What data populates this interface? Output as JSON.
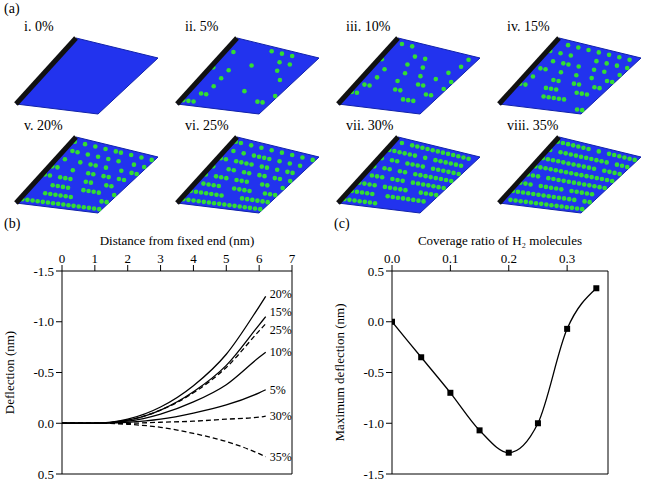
{
  "images": {
    "label": "(a)",
    "captions": [
      "i. 0%",
      "ii. 5%",
      "iii. 10%",
      "iv. 15%",
      "v. 20%",
      "vi. 25%",
      "vii. 30%",
      "viii. 35%"
    ]
  },
  "chart_data": [
    {
      "type": "line",
      "title": "(b)",
      "x_label": "Distance from fixed end (nm)",
      "y_label": "Deflection (nm)",
      "x": [
        0,
        1,
        2,
        3,
        4,
        5,
        6,
        6.2
      ],
      "series": [
        {
          "name": "20%",
          "color": "#000000",
          "line_style": "solid",
          "values": [
            0,
            0,
            -0.04,
            -0.16,
            -0.37,
            -0.68,
            -1.15,
            -1.25
          ]
        },
        {
          "name": "15%",
          "color": "#000000",
          "line_style": "solid",
          "values": [
            0,
            0,
            -0.03,
            -0.13,
            -0.31,
            -0.57,
            -0.97,
            -1.05
          ]
        },
        {
          "name": "25%",
          "color": "#000000",
          "line_style": "dashed",
          "values": [
            0,
            0,
            -0.03,
            -0.13,
            -0.3,
            -0.55,
            -0.91,
            -0.98
          ]
        },
        {
          "name": "10%",
          "color": "#000000",
          "line_style": "solid",
          "values": [
            0,
            0,
            -0.02,
            -0.09,
            -0.21,
            -0.38,
            -0.65,
            -0.7
          ]
        },
        {
          "name": "5%",
          "color": "#000000",
          "line_style": "solid",
          "values": [
            0,
            0,
            -0.01,
            -0.04,
            -0.1,
            -0.18,
            -0.3,
            -0.33
          ]
        },
        {
          "name": "30%",
          "color": "#000000",
          "line_style": "dashed",
          "values": [
            0,
            0,
            0,
            -0.01,
            -0.02,
            -0.04,
            -0.06,
            -0.07
          ]
        },
        {
          "name": "35%",
          "color": "#000000",
          "line_style": "dashed",
          "values": [
            0,
            0,
            0.01,
            0.04,
            0.1,
            0.18,
            0.3,
            0.33
          ]
        }
      ],
      "xlim": [
        0,
        7
      ],
      "xticks": [
        0,
        1,
        2,
        3,
        4,
        5,
        6,
        7
      ],
      "ylim": [
        0.5,
        -1.5
      ],
      "yticks": [
        -1.5,
        {
          "value": -1,
          "label": "-1.0"
        },
        -0.5,
        {
          "value": 0,
          "label": "0.0"
        },
        0.5
      ]
    },
    {
      "type": "line",
      "title": "(c)",
      "x_label": "Coverage ratio of H₂ molecules",
      "y_label": "Maximum deflection (nm)",
      "x": [
        0,
        0.05,
        0.1,
        0.15,
        0.2,
        0.25,
        0.3,
        0.35
      ],
      "series": [
        {
          "color": "#000000",
          "marker": "square",
          "line_style": "solid",
          "values": [
            0,
            -0.35,
            -0.7,
            -1.07,
            -1.29,
            -1.0,
            -0.07,
            0.33
          ]
        }
      ],
      "xlim": [
        0,
        0.37
      ],
      "xticks": [
        {
          "value": 0,
          "label": "0.0"
        },
        0.1,
        0.2,
        0.3
      ],
      "ylim": [
        -1.5,
        0.5
      ],
      "yticks": [
        -1.5,
        {
          "value": -1,
          "label": "-1.0"
        },
        -0.5,
        {
          "value": 0,
          "label": "0.0"
        },
        0.5
      ]
    }
  ]
}
